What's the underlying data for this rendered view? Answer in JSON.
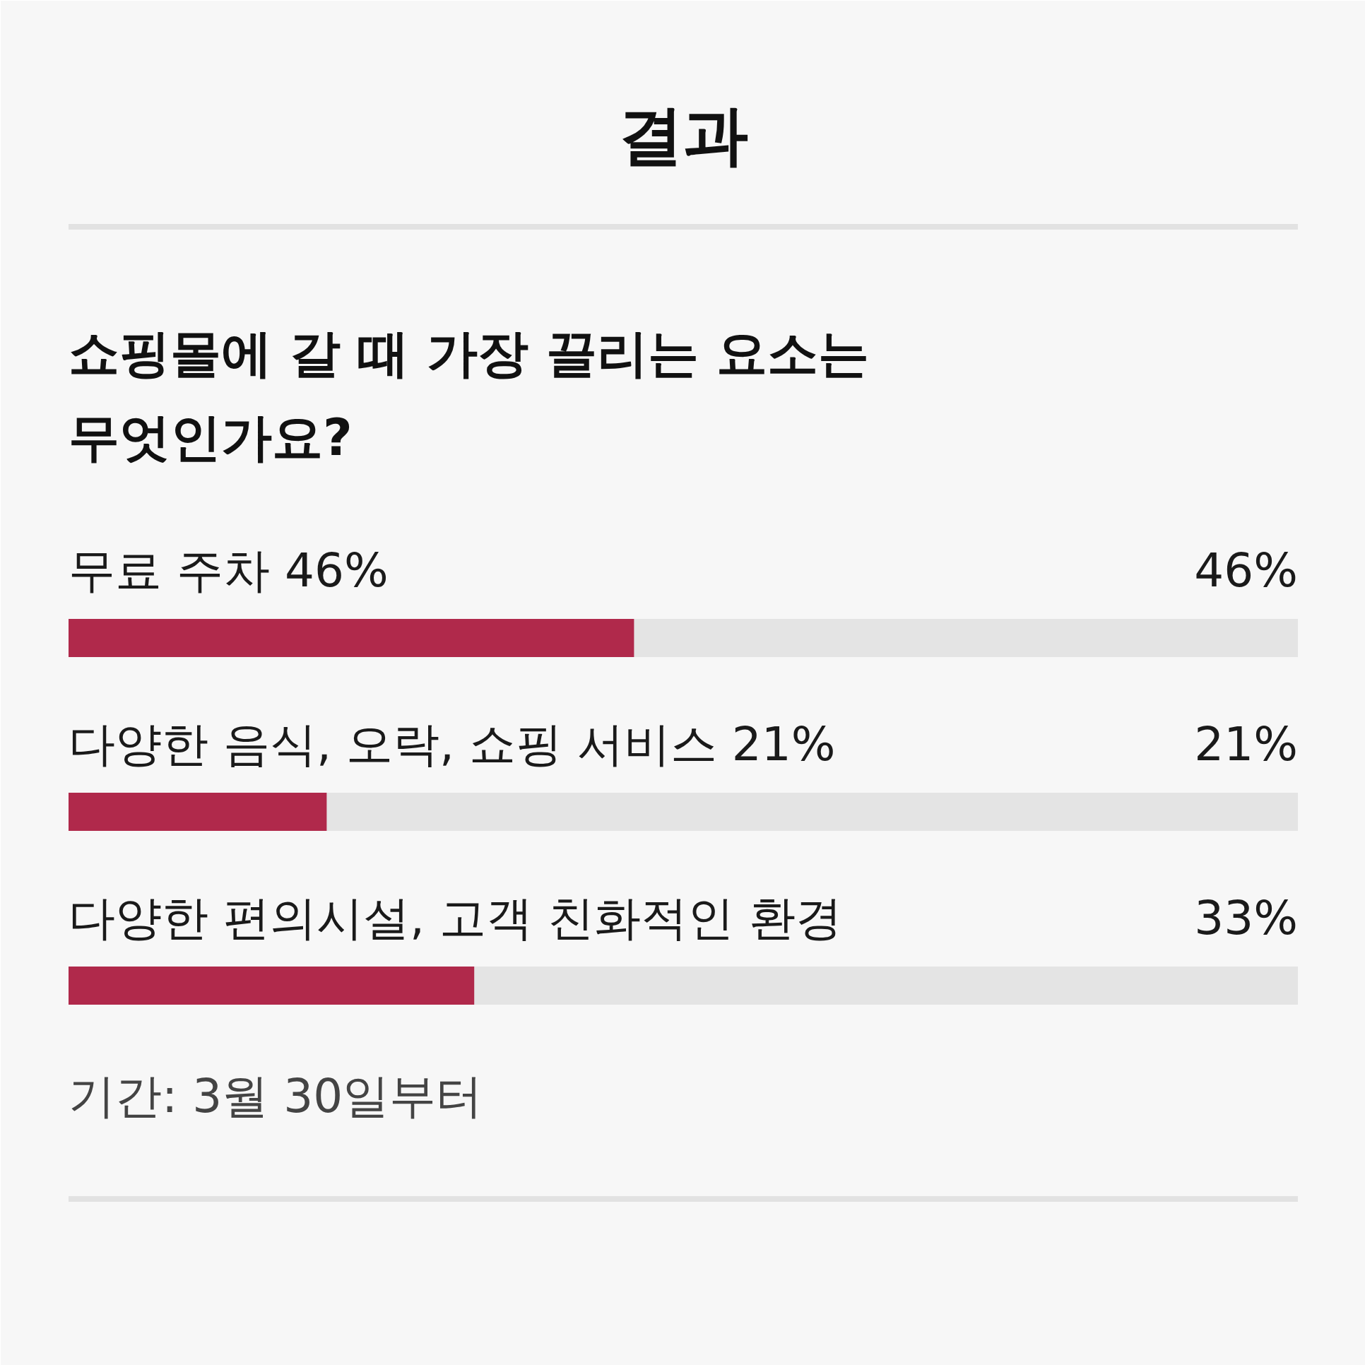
{
  "chart_data": {
    "type": "bar",
    "orientation": "horizontal",
    "title": "결과",
    "subtitle": "쇼핑몰에 갈 때 가장 끌리는 요소는\n무엇인가요?",
    "categories": [
      "무료 주차  46%",
      "다양한 음식, 오락, 쇼핑 서비스  21%",
      "다양한 편의시설, 고객 친화적인 환경"
    ],
    "values": [
      46,
      21,
      33
    ],
    "value_labels": [
      "46%",
      "21%",
      "33%"
    ],
    "color": "#b0294b",
    "xlim": [
      0,
      100
    ],
    "tick_labels": false,
    "annotations": [
      "기간: 3월 30일부터"
    ]
  }
}
